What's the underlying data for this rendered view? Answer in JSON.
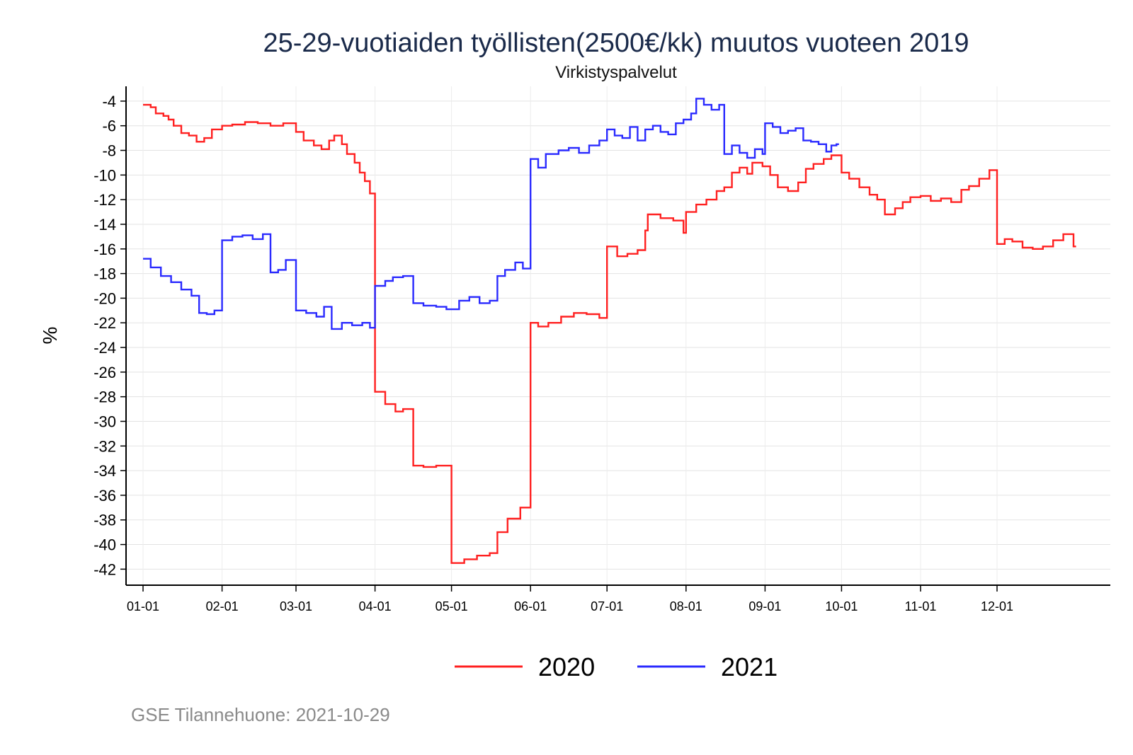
{
  "chart_data": {
    "type": "line",
    "title": "25-29-vuotiaiden työllisten(2500€/kk) muutos vuoteen 2019",
    "subtitle": "Virkistyspalvelut",
    "ylabel": "%",
    "xlabel": "",
    "ylim": [
      -43.3,
      -2.8
    ],
    "yticks": [
      -4,
      -6,
      -8,
      -10,
      -12,
      -14,
      -16,
      -18,
      -20,
      -22,
      -24,
      -26,
      -28,
      -30,
      -32,
      -34,
      -36,
      -38,
      -40,
      -42
    ],
    "xticks": [
      "01-01",
      "02-01",
      "03-01",
      "04-01",
      "05-01",
      "06-01",
      "07-01",
      "08-01",
      "09-01",
      "10-01",
      "11-01",
      "12-01"
    ],
    "xtick_days": [
      0,
      31,
      60,
      91,
      121,
      152,
      182,
      213,
      244,
      274,
      305,
      335
    ],
    "grid": true,
    "legend_position": "bottom",
    "series": [
      {
        "name": "2020",
        "color": "#ff2020",
        "points": [
          [
            "01-01",
            -4.3
          ],
          [
            "01-04",
            -4.5
          ],
          [
            "01-06",
            -5.0
          ],
          [
            "01-09",
            -5.2
          ],
          [
            "01-11",
            -5.5
          ],
          [
            "01-13",
            -6.0
          ],
          [
            "01-16",
            -6.6
          ],
          [
            "01-19",
            -6.8
          ],
          [
            "01-22",
            -7.3
          ],
          [
            "01-25",
            -7.0
          ],
          [
            "01-28",
            -6.3
          ],
          [
            "02-01",
            -6.0
          ],
          [
            "02-05",
            -5.9
          ],
          [
            "02-10",
            -5.7
          ],
          [
            "02-15",
            -5.8
          ],
          [
            "02-20",
            -6.0
          ],
          [
            "02-25",
            -5.8
          ],
          [
            "03-01",
            -6.5
          ],
          [
            "03-04",
            -7.2
          ],
          [
            "03-08",
            -7.6
          ],
          [
            "03-11",
            -7.9
          ],
          [
            "03-14",
            -7.2
          ],
          [
            "03-16",
            -6.8
          ],
          [
            "03-19",
            -7.5
          ],
          [
            "03-21",
            -8.3
          ],
          [
            "03-24",
            -9.0
          ],
          [
            "03-26",
            -9.8
          ],
          [
            "03-28",
            -10.5
          ],
          [
            "03-30",
            -11.5
          ],
          [
            "04-01",
            -27.6
          ],
          [
            "04-05",
            -28.6
          ],
          [
            "04-09",
            -29.2
          ],
          [
            "04-12",
            -29.0
          ],
          [
            "04-16",
            -33.6
          ],
          [
            "04-20",
            -33.7
          ],
          [
            "04-25",
            -33.6
          ],
          [
            "05-01",
            -41.5
          ],
          [
            "05-06",
            -41.2
          ],
          [
            "05-11",
            -40.9
          ],
          [
            "05-16",
            -40.7
          ],
          [
            "05-19",
            -39.0
          ],
          [
            "05-23",
            -37.9
          ],
          [
            "05-28",
            -37.0
          ],
          [
            "06-01",
            -22.0
          ],
          [
            "06-04",
            -22.3
          ],
          [
            "06-08",
            -22.0
          ],
          [
            "06-13",
            -21.5
          ],
          [
            "06-18",
            -21.2
          ],
          [
            "06-23",
            -21.3
          ],
          [
            "06-28",
            -21.6
          ],
          [
            "07-01",
            -15.8
          ],
          [
            "07-05",
            -16.6
          ],
          [
            "07-09",
            -16.4
          ],
          [
            "07-13",
            -16.1
          ],
          [
            "07-16",
            -14.5
          ],
          [
            "07-17",
            -13.2
          ],
          [
            "07-22",
            -13.5
          ],
          [
            "07-27",
            -13.7
          ],
          [
            "07-31",
            -14.7
          ],
          [
            "08-01",
            -13.0
          ],
          [
            "08-05",
            -12.4
          ],
          [
            "08-09",
            -12.0
          ],
          [
            "08-13",
            -11.3
          ],
          [
            "08-16",
            -11.0
          ],
          [
            "08-19",
            -9.8
          ],
          [
            "08-22",
            -9.4
          ],
          [
            "08-25",
            -9.9
          ],
          [
            "08-27",
            -9.0
          ],
          [
            "08-31",
            -9.3
          ],
          [
            "09-03",
            -10.0
          ],
          [
            "09-06",
            -11.0
          ],
          [
            "09-10",
            -11.3
          ],
          [
            "09-14",
            -10.6
          ],
          [
            "09-17",
            -9.5
          ],
          [
            "09-20",
            -9.1
          ],
          [
            "09-24",
            -8.7
          ],
          [
            "09-27",
            -8.4
          ],
          [
            "10-01",
            -9.8
          ],
          [
            "10-04",
            -10.3
          ],
          [
            "10-08",
            -11.0
          ],
          [
            "10-12",
            -11.6
          ],
          [
            "10-15",
            -12.0
          ],
          [
            "10-18",
            -13.2
          ],
          [
            "10-22",
            -12.7
          ],
          [
            "10-25",
            -12.2
          ],
          [
            "10-28",
            -11.8
          ],
          [
            "11-01",
            -11.7
          ],
          [
            "11-05",
            -12.1
          ],
          [
            "11-09",
            -11.9
          ],
          [
            "11-13",
            -12.2
          ],
          [
            "11-17",
            -11.2
          ],
          [
            "11-20",
            -10.9
          ],
          [
            "11-24",
            -10.3
          ],
          [
            "11-28",
            -9.6
          ],
          [
            "12-01",
            -15.6
          ],
          [
            "12-04",
            -15.2
          ],
          [
            "12-07",
            -15.4
          ],
          [
            "12-11",
            -15.9
          ],
          [
            "12-15",
            -16.0
          ],
          [
            "12-19",
            -15.8
          ],
          [
            "12-23",
            -15.3
          ],
          [
            "12-27",
            -14.8
          ],
          [
            "12-31",
            -15.8
          ]
        ]
      },
      {
        "name": "2021",
        "color": "#2a2aff",
        "points": [
          [
            "01-01",
            -16.8
          ],
          [
            "01-04",
            -17.5
          ],
          [
            "01-08",
            -18.2
          ],
          [
            "01-12",
            -18.7
          ],
          [
            "01-16",
            -19.3
          ],
          [
            "01-20",
            -19.8
          ],
          [
            "01-23",
            -21.2
          ],
          [
            "01-26",
            -21.3
          ],
          [
            "01-29",
            -21.0
          ],
          [
            "02-01",
            -15.3
          ],
          [
            "02-05",
            -15.0
          ],
          [
            "02-09",
            -14.9
          ],
          [
            "02-13",
            -15.2
          ],
          [
            "02-17",
            -14.8
          ],
          [
            "02-20",
            -17.9
          ],
          [
            "02-23",
            -17.7
          ],
          [
            "02-26",
            -16.9
          ],
          [
            "03-01",
            -21.0
          ],
          [
            "03-05",
            -21.2
          ],
          [
            "03-09",
            -21.5
          ],
          [
            "03-12",
            -20.7
          ],
          [
            "03-15",
            -22.5
          ],
          [
            "03-19",
            -22.0
          ],
          [
            "03-23",
            -22.2
          ],
          [
            "03-27",
            -22.0
          ],
          [
            "03-30",
            -22.4
          ],
          [
            "04-01",
            -19.0
          ],
          [
            "04-05",
            -18.6
          ],
          [
            "04-08",
            -18.3
          ],
          [
            "04-12",
            -18.2
          ],
          [
            "04-16",
            -20.4
          ],
          [
            "04-20",
            -20.6
          ],
          [
            "04-25",
            -20.7
          ],
          [
            "04-29",
            -20.9
          ],
          [
            "05-04",
            -20.2
          ],
          [
            "05-08",
            -19.9
          ],
          [
            "05-12",
            -20.4
          ],
          [
            "05-16",
            -20.2
          ],
          [
            "05-19",
            -18.2
          ],
          [
            "05-22",
            -17.7
          ],
          [
            "05-26",
            -17.1
          ],
          [
            "05-29",
            -17.6
          ],
          [
            "06-01",
            -8.7
          ],
          [
            "06-04",
            -9.4
          ],
          [
            "06-07",
            -8.3
          ],
          [
            "06-12",
            -8.0
          ],
          [
            "06-16",
            -7.8
          ],
          [
            "06-20",
            -8.2
          ],
          [
            "06-24",
            -7.6
          ],
          [
            "06-28",
            -7.2
          ],
          [
            "07-01",
            -6.3
          ],
          [
            "07-04",
            -6.8
          ],
          [
            "07-07",
            -7.0
          ],
          [
            "07-10",
            -6.1
          ],
          [
            "07-13",
            -7.2
          ],
          [
            "07-16",
            -6.3
          ],
          [
            "07-19",
            -6.0
          ],
          [
            "07-22",
            -6.5
          ],
          [
            "07-25",
            -6.7
          ],
          [
            "07-28",
            -5.8
          ],
          [
            "07-31",
            -5.5
          ],
          [
            "08-03",
            -5.0
          ],
          [
            "08-05",
            -3.8
          ],
          [
            "08-08",
            -4.3
          ],
          [
            "08-11",
            -4.7
          ],
          [
            "08-14",
            -4.3
          ],
          [
            "08-16",
            -8.3
          ],
          [
            "08-19",
            -7.6
          ],
          [
            "08-22",
            -8.2
          ],
          [
            "08-25",
            -8.6
          ],
          [
            "08-28",
            -7.9
          ],
          [
            "08-31",
            -8.3
          ],
          [
            "09-01",
            -5.8
          ],
          [
            "09-04",
            -6.1
          ],
          [
            "09-07",
            -6.6
          ],
          [
            "09-10",
            -6.4
          ],
          [
            "09-13",
            -6.2
          ],
          [
            "09-16",
            -7.2
          ],
          [
            "09-19",
            -7.3
          ],
          [
            "09-22",
            -7.5
          ],
          [
            "09-25",
            -8.1
          ],
          [
            "09-27",
            -7.6
          ],
          [
            "09-29",
            -7.5
          ]
        ]
      }
    ]
  },
  "footer": {
    "source": "GSE Tilannehuone: 2021-10-29"
  }
}
